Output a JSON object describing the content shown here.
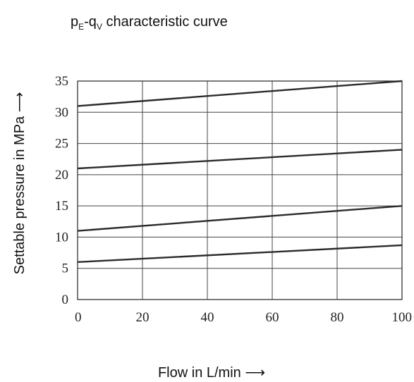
{
  "chart_data": {
    "type": "line",
    "title": {
      "main_a": "p",
      "sub_a": "E",
      "main_b": "-q",
      "sub_b": "V",
      "main_c": " characteristic curve"
    },
    "xlabel": "Flow in L/min",
    "ylabel": "Settable pressure in MPa",
    "xlim": [
      0,
      100
    ],
    "ylim": [
      0,
      35
    ],
    "x_ticks": [
      0,
      20,
      40,
      60,
      80,
      100
    ],
    "y_ticks": [
      0,
      5,
      10,
      15,
      20,
      25,
      30,
      35
    ],
    "grid": true,
    "series": [
      {
        "x": [
          0,
          100
        ],
        "y": [
          6.0,
          8.7
        ]
      },
      {
        "x": [
          0,
          100
        ],
        "y": [
          11.0,
          15.0
        ]
      },
      {
        "x": [
          0,
          100
        ],
        "y": [
          21.0,
          24.0
        ]
      },
      {
        "x": [
          0,
          100
        ],
        "y": [
          31.0,
          35.0
        ]
      }
    ],
    "colors": {
      "series": "#2b2b2b",
      "grid": "#444444",
      "axis": "#222222"
    }
  }
}
